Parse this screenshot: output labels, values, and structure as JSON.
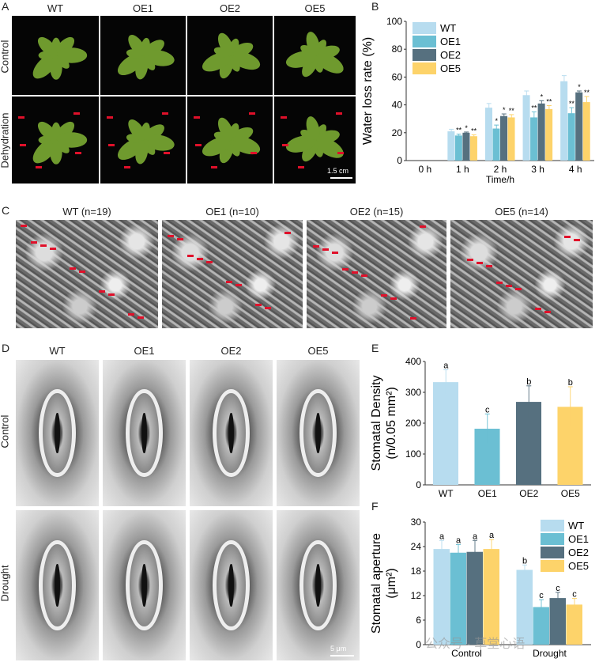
{
  "colors": {
    "WT": "#b7dcef",
    "OE1": "#6bbfd3",
    "OE2": "#56707f",
    "OE5": "#fdd36a",
    "arrow": "#e0102a"
  },
  "panelA": {
    "label": "A",
    "columns": [
      "WT",
      "OE1",
      "OE2",
      "OE5"
    ],
    "rows": [
      "Control",
      "Dehydration"
    ],
    "scale": "1.5 cm"
  },
  "panelB": {
    "label": "B"
  },
  "panelC": {
    "label": "C",
    "titles": [
      "WT (n=19)",
      "OE1 (n=10)",
      "OE2 (n=15)",
      "OE5 (n=14)"
    ]
  },
  "panelD": {
    "label": "D",
    "columns": [
      "WT",
      "OE1",
      "OE2",
      "OE5"
    ],
    "rows": [
      "Control",
      "Drought"
    ],
    "scale": "5 μm"
  },
  "panelE": {
    "label": "E"
  },
  "panelF": {
    "label": "F"
  },
  "watermark": "公众号 · 草堂心语",
  "chart_data": [
    {
      "id": "B",
      "type": "bar",
      "xlabel": "Time/h",
      "ylabel": "Water loss rate (%)",
      "ylim": [
        0,
        100
      ],
      "yticks": [
        0,
        20,
        40,
        60,
        80,
        100
      ],
      "categories": [
        "0 h",
        "1 h",
        "2 h",
        "3 h",
        "4 h"
      ],
      "legend": "top-left",
      "series": [
        {
          "name": "WT",
          "values": [
            0,
            21,
            38,
            47,
            57
          ],
          "errors": [
            0,
            1.5,
            3,
            3,
            4
          ],
          "sig": [
            "",
            "",
            "",
            "",
            ""
          ]
        },
        {
          "name": "OE1",
          "values": [
            0,
            18,
            23,
            31,
            34
          ],
          "errors": [
            0,
            1,
            2.5,
            4,
            4
          ],
          "sig": [
            "",
            "**",
            "*",
            "**",
            "**"
          ]
        },
        {
          "name": "OE2",
          "values": [
            0,
            20,
            32,
            41,
            49
          ],
          "errors": [
            0,
            0.5,
            1.5,
            2,
            1
          ],
          "sig": [
            "",
            "*",
            "*",
            "*",
            "*"
          ]
        },
        {
          "name": "OE5",
          "values": [
            0,
            17.5,
            31,
            37,
            42
          ],
          "errors": [
            0,
            1,
            2,
            2.5,
            4
          ],
          "sig": [
            "",
            "**",
            "**",
            "**",
            "**"
          ]
        }
      ]
    },
    {
      "id": "E",
      "type": "bar",
      "xlabel": "",
      "ylabel": "Stomatal Density",
      "ylabel2": "(n/0.05 mm²)",
      "ylim": [
        0,
        400
      ],
      "yticks": [
        0,
        100,
        200,
        300,
        400
      ],
      "categories": [
        "WT",
        "OE1",
        "OE2",
        "OE5"
      ],
      "series": [
        {
          "values": [
            333,
            182,
            269,
            253
          ],
          "errors": [
            40,
            48,
            52,
            65
          ],
          "sig": [
            "a",
            "c",
            "b",
            "b"
          ]
        }
      ]
    },
    {
      "id": "F",
      "type": "bar",
      "xlabel": "",
      "ylabel": "Stomatal aperture",
      "ylabel2": "(μm²)",
      "ylim": [
        0,
        30
      ],
      "yticks": [
        0,
        6,
        12,
        18,
        24,
        30
      ],
      "categories": [
        "Control",
        "Drought"
      ],
      "legend": "top-right",
      "series": [
        {
          "name": "WT",
          "values": [
            23.4,
            18.3
          ],
          "errors": [
            2.1,
            1.2
          ],
          "sig": [
            "a",
            "b"
          ]
        },
        {
          "name": "OE1",
          "values": [
            22.5,
            9.2
          ],
          "errors": [
            2,
            1.8
          ],
          "sig": [
            "a",
            "c"
          ]
        },
        {
          "name": "OE2",
          "values": [
            22.7,
            11.4
          ],
          "errors": [
            2.8,
            1.4
          ],
          "sig": [
            "a",
            "c"
          ]
        },
        {
          "name": "OE5",
          "values": [
            23.4,
            9.8
          ],
          "errors": [
            2.3,
            1.5
          ],
          "sig": [
            "a",
            "c"
          ]
        }
      ]
    }
  ]
}
